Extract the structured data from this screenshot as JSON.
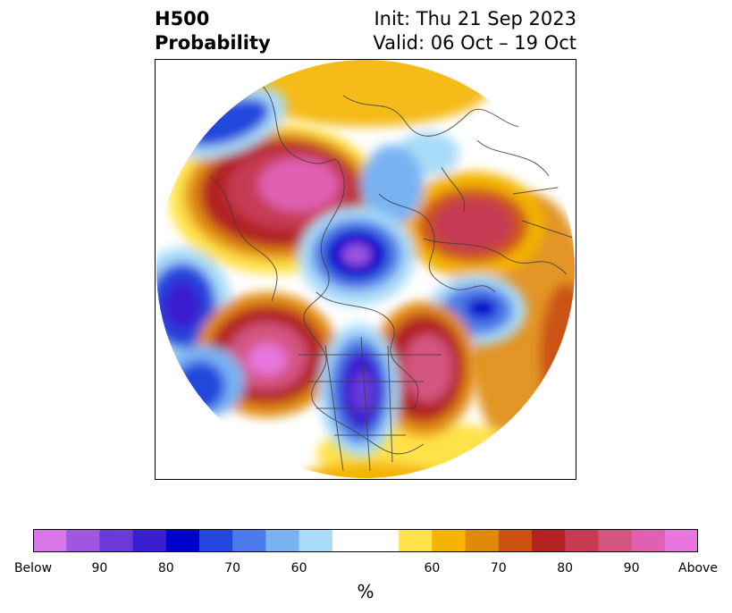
{
  "header": {
    "left_line1": "H500",
    "left_line2": "Probability",
    "right_line1": "Init: Thu 21 Sep 2023",
    "right_line2": "Valid: 06 Oct – 19 Oct"
  },
  "colorbar": {
    "unit": "%",
    "colors": [
      "#d975e6",
      "#9f56e0",
      "#6a3ad7",
      "#3a1fd0",
      "#0000cc",
      "#2346dc",
      "#4d7ae8",
      "#78b2f2",
      "#a9dcf8",
      "#ffffff",
      "#ffffff",
      "#ffe24a",
      "#f4b400",
      "#e08a0c",
      "#cc5214",
      "#b22222",
      "#c63a52",
      "#d4557f",
      "#e060b2",
      "#e876de"
    ],
    "labels": [
      "Below",
      "90",
      "80",
      "70",
      "60",
      "60",
      "70",
      "80",
      "90",
      "Above"
    ]
  }
}
